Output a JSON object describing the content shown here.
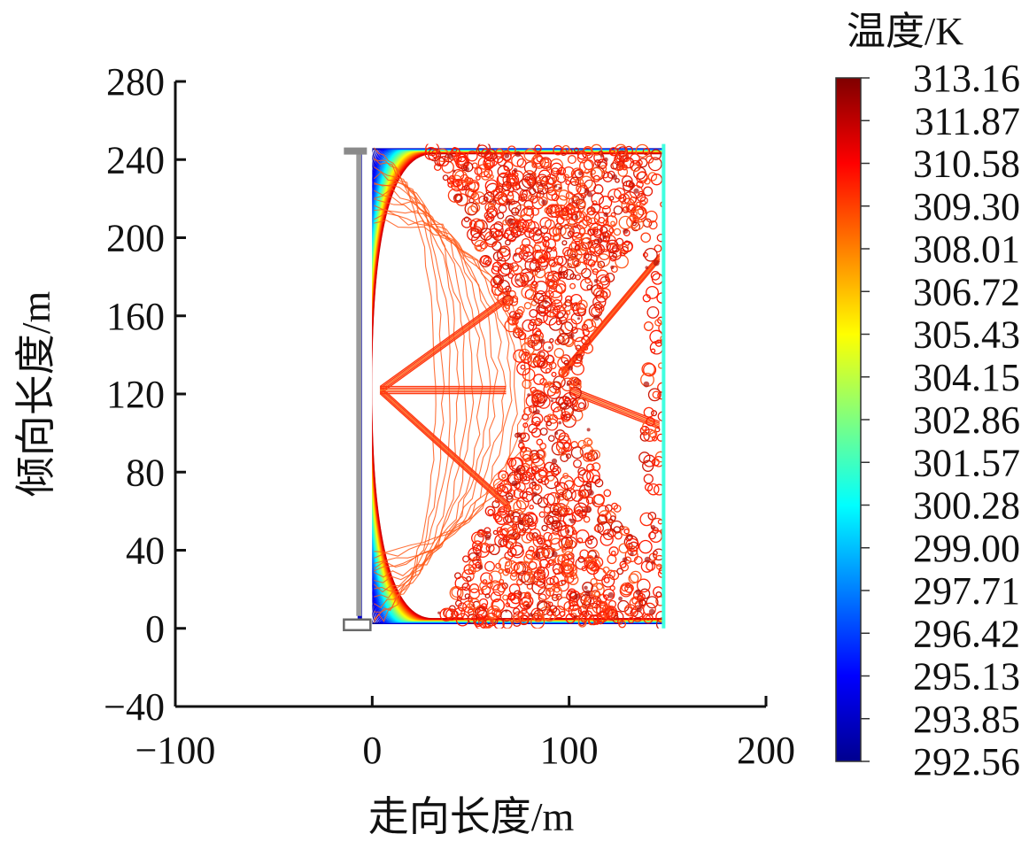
{
  "chart_data": {
    "type": "heatmap",
    "subtype": "contour",
    "xlabel": "走向长度/m",
    "ylabel": "倾向长度/m",
    "xlim": [
      -100,
      200
    ],
    "ylim": [
      -40,
      280
    ],
    "x_ticks": [
      -100,
      0,
      100,
      200
    ],
    "y_ticks": [
      -40,
      0,
      40,
      80,
      120,
      160,
      200,
      240,
      280
    ],
    "grid": false,
    "domain_extent": {
      "x": [
        0,
        148
      ],
      "y": [
        0,
        248
      ]
    },
    "colorbar": {
      "title": "温度/K",
      "placement": "right",
      "colormap": "jet",
      "min": 292.56,
      "max": 313.16,
      "levels": [
        "313.16",
        "311.87",
        "310.58",
        "309.30",
        "308.01",
        "306.72",
        "305.43",
        "304.15",
        "302.86",
        "301.57",
        "300.28",
        "299.00",
        "297.71",
        "296.42",
        "295.13",
        "293.85",
        "292.56"
      ]
    },
    "colors": {
      "cold": "#00008f",
      "mid": "#7fff7f",
      "hot": "#ff2a0a",
      "max": "#7f0000"
    }
  }
}
